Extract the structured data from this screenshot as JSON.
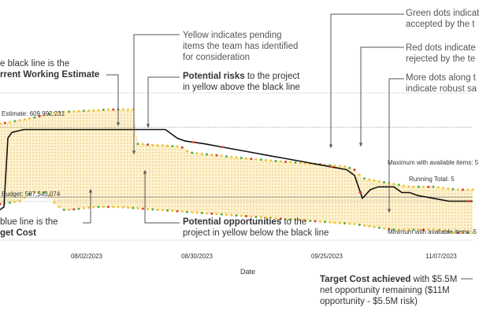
{
  "chart_data": {
    "type": "area",
    "xlabel": "Date",
    "ylabel": "",
    "x_tick_labels": [
      "08/02/2023",
      "08/30/2023",
      "09/25/2023",
      "11/07/2023"
    ],
    "reference_lines": {
      "estimate_label": "Estimate: 609,992,231",
      "budget_label": "Budget: 587,543,074",
      "maximum_label": "Maximum with available items: 5",
      "running_label": "Running Total: 5",
      "minimum_label": "Minimum with available items: 5"
    },
    "series": [
      {
        "role": "current-working-estimate",
        "color": "#111111",
        "points": [
          [
            0,
            582
          ],
          [
            1,
            583
          ],
          [
            2,
            607
          ],
          [
            3,
            609
          ],
          [
            6,
            610
          ],
          [
            12,
            610
          ],
          [
            18,
            610
          ],
          [
            24,
            610
          ],
          [
            30,
            610
          ],
          [
            36,
            610
          ],
          [
            42,
            610
          ],
          [
            45,
            607
          ],
          [
            47,
            606
          ],
          [
            52,
            605
          ],
          [
            56,
            604
          ],
          [
            60,
            603
          ],
          [
            64,
            602
          ],
          [
            68,
            601
          ],
          [
            72,
            600
          ],
          [
            76,
            599
          ],
          [
            80,
            598
          ],
          [
            84,
            597
          ],
          [
            88,
            596
          ],
          [
            90,
            594
          ],
          [
            92,
            586
          ],
          [
            94,
            589
          ],
          [
            96,
            590
          ],
          [
            100,
            590
          ],
          [
            102,
            588
          ],
          [
            104,
            588
          ],
          [
            106,
            587
          ],
          [
            110,
            586
          ],
          [
            114,
            585
          ],
          [
            118,
            585
          ],
          [
            120,
            585
          ]
        ]
      },
      {
        "role": "maximum-with-available-items",
        "color": "#f0c040",
        "points": [
          [
            0,
            612
          ],
          [
            8,
            614
          ],
          [
            14,
            616
          ],
          [
            28,
            617
          ],
          [
            34,
            617
          ],
          [
            35,
            605
          ],
          [
            46,
            604
          ],
          [
            48,
            602
          ],
          [
            55,
            601
          ],
          [
            62,
            600
          ],
          [
            70,
            599
          ],
          [
            80,
            598
          ],
          [
            88,
            597
          ],
          [
            90,
            596
          ],
          [
            92,
            593
          ],
          [
            100,
            591
          ],
          [
            104,
            590
          ],
          [
            110,
            590
          ],
          [
            116,
            589
          ],
          [
            120,
            589
          ]
        ]
      },
      {
        "role": "minimum-with-available-items",
        "color": "#f0c040",
        "points": [
          [
            0,
            584
          ],
          [
            5,
            585
          ],
          [
            8,
            588
          ],
          [
            12,
            588
          ],
          [
            14,
            584
          ],
          [
            16,
            582
          ],
          [
            18,
            582
          ],
          [
            24,
            583
          ],
          [
            30,
            583
          ],
          [
            40,
            582
          ],
          [
            50,
            581
          ],
          [
            60,
            580
          ],
          [
            70,
            579
          ],
          [
            80,
            578
          ],
          [
            90,
            577
          ],
          [
            95,
            576
          ],
          [
            100,
            575
          ],
          [
            105,
            575
          ],
          [
            110,
            575
          ],
          [
            115,
            574
          ],
          [
            120,
            574
          ]
        ]
      }
    ],
    "y_range": [
      570,
      625
    ],
    "x_range": [
      0,
      120
    ],
    "x_ticks": [
      22,
      50,
      83,
      112
    ],
    "colors": {
      "estimate": "#111111",
      "band": "#fbe9b5",
      "band_dot": "#e8b93a",
      "budget_line": "#5b7fc2",
      "green_dot": "#4caf50",
      "red_dot": "#e53935",
      "yellow_dot": "#f2c230"
    },
    "grid": false,
    "legend": "none"
  },
  "annotations": {
    "a1_line1": "Yellow indicates pending",
    "a1_line2": "items the team has identified",
    "a1_line3": "for consideration",
    "a2_bold": "Potential risks",
    "a2_rest": " to the project",
    "a2_line2": "in yellow above the black line",
    "a3_line1": "Green dots indicat",
    "a3_line2": "accepted by the t",
    "a4_line1": "Red dots indicate",
    "a4_line2": "rejected by the te",
    "a5_line1": "More dots along t",
    "a5_line2": "indicate robust sa",
    "a6_line1": "e black line is the",
    "a6_bold": "rrent Working Estimate",
    "a7_line1": "blue line is the",
    "a7_bold": "get Cost",
    "a8_bold": "Potential opportunities",
    "a8_rest": " to the",
    "a8_line2": "project in yellow below the black line",
    "a9_bold": "Target Cost achieved",
    "a9_rest": " with $5.5M",
    "a9_line2": "net opportunity remaining ($11M",
    "a9_line3": "opportunity - $5.5M risk)"
  }
}
